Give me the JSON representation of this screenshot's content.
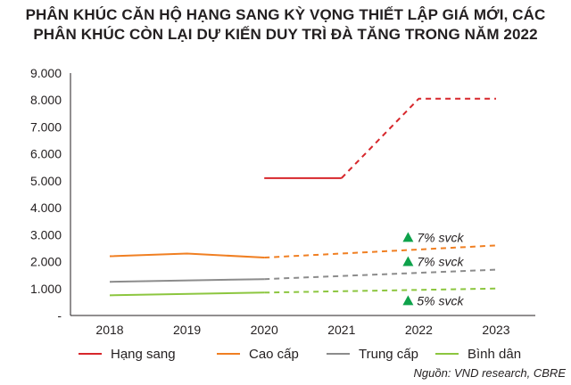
{
  "title_line1": "PHÂN KHÚC CĂN HỘ HẠNG SANG KỲ VỌNG THIẾT LẬP GIÁ MỚI, CÁC",
  "title_line2": "PHÂN KHÚC CÒN LẠI DỰ KIẾN DUY TRÌ ĐÀ TĂNG TRONG NĂM 2022",
  "source": "Nguồn: VND research, CBRE",
  "chart_data": {
    "type": "line",
    "title": "PHÂN KHÚC CĂN HỘ HẠNG SANG KỲ VỌNG THIẾT LẬP GIÁ MỚI, CÁC PHÂN KHÚC CÒN LẠI DỰ KIẾN DUY TRÌ ĐÀ TĂNG TRONG NĂM 2022",
    "categories": [
      "2018",
      "2019",
      "2020",
      "2021",
      "2022",
      "2023"
    ],
    "y_ticks": [
      "-",
      "1.000",
      "2.000",
      "3.000",
      "4.000",
      "5.000",
      "6.000",
      "7.000",
      "8.000",
      "9.000"
    ],
    "ylim": [
      0,
      9000
    ],
    "grid": false,
    "legend_position": "bottom",
    "series": [
      {
        "name": "Hạng sang",
        "color": "#d7262b",
        "solid": [
          [
            2020,
            5100
          ],
          [
            2021,
            5100
          ]
        ],
        "dashed": [
          [
            2021,
            5100
          ],
          [
            2022,
            8050
          ],
          [
            2023,
            8050
          ]
        ]
      },
      {
        "name": "Cao cấp",
        "color": "#f07f22",
        "solid": [
          [
            2018,
            2200
          ],
          [
            2019,
            2300
          ],
          [
            2020,
            2150
          ]
        ],
        "dashed": [
          [
            2020,
            2150
          ],
          [
            2023,
            2600
          ]
        ]
      },
      {
        "name": "Trung cấp",
        "color": "#8c8c8c",
        "solid": [
          [
            2018,
            1250
          ],
          [
            2020,
            1350
          ]
        ],
        "dashed": [
          [
            2020,
            1350
          ],
          [
            2023,
            1700
          ]
        ]
      },
      {
        "name": "Bình dân",
        "color": "#8cc63f",
        "solid": [
          [
            2018,
            750
          ],
          [
            2020,
            850
          ]
        ],
        "dashed": [
          [
            2020,
            850
          ],
          [
            2023,
            1000
          ]
        ]
      }
    ],
    "annotations": [
      {
        "text": "7% svck",
        "x": 2022,
        "y": 2900,
        "marker_color": "#0ea24b"
      },
      {
        "text": "7% svck",
        "x": 2022,
        "y": 2000,
        "marker_color": "#0ea24b"
      },
      {
        "text": "5% svck",
        "x": 2022,
        "y": 550,
        "marker_color": "#0ea24b"
      }
    ]
  }
}
